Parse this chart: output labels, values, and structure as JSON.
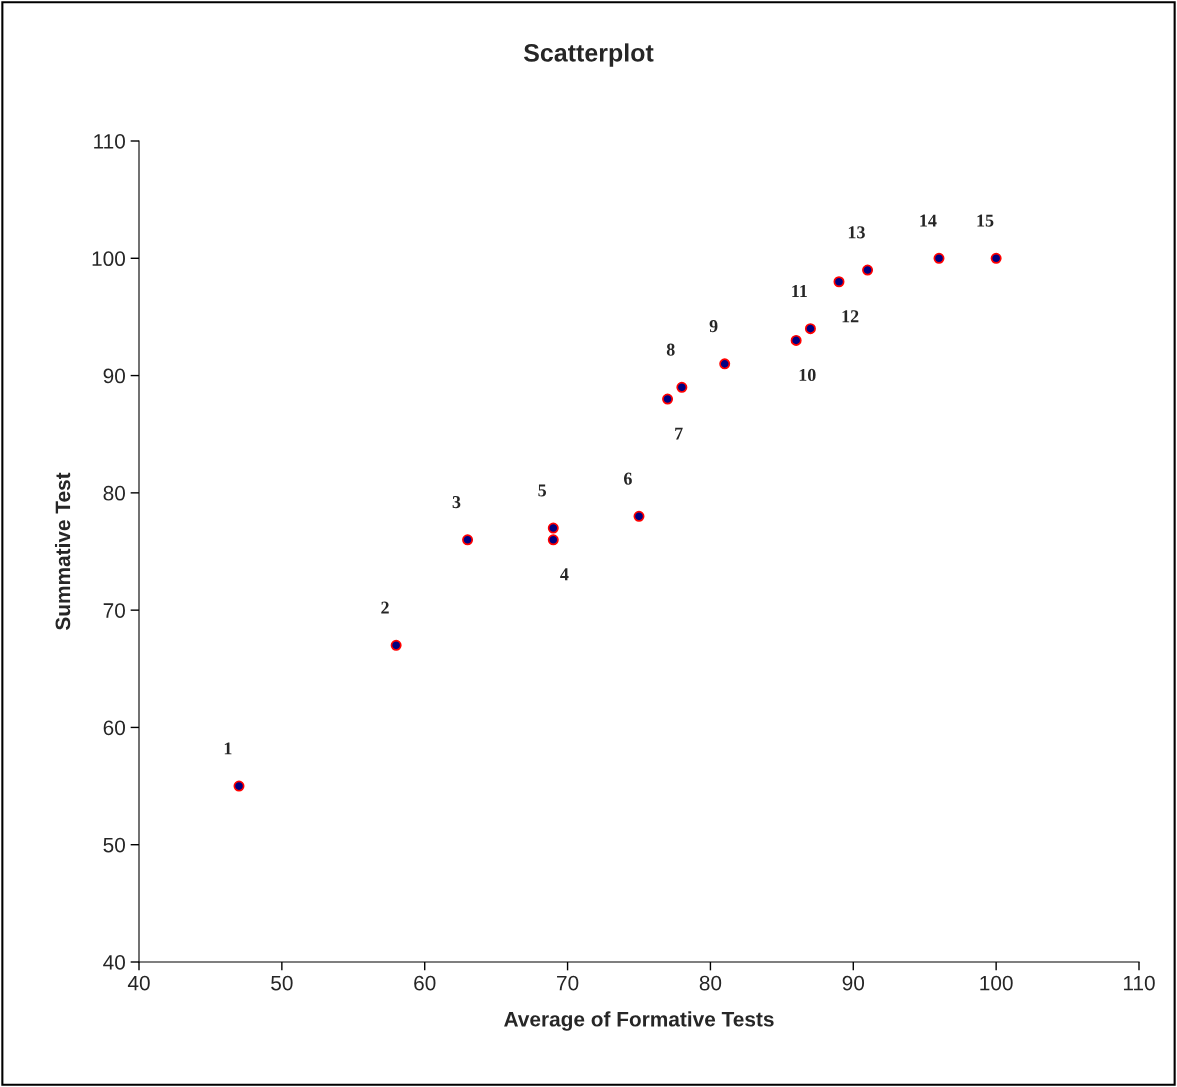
{
  "chart_data": {
    "type": "scatter",
    "title": "Scatterplot",
    "xlabel": "Average of Formative Tests",
    "ylabel": "Summative Test",
    "x": [
      47,
      58,
      63,
      69,
      69,
      75,
      77,
      78,
      81,
      86,
      87,
      89,
      91,
      96,
      100
    ],
    "series": [
      {
        "color": "#000080",
        "values": [
          55,
          67,
          76,
          76,
          77,
          78,
          88,
          89,
          91,
          93,
          94,
          98,
          99,
          100,
          100
        ]
      }
    ],
    "annotations": [
      {
        "text": "1",
        "x": 47,
        "y": 55
      },
      {
        "text": "2",
        "x": 58,
        "y": 67
      },
      {
        "text": "3",
        "x": 63,
        "y": 76
      },
      {
        "text": "4",
        "x": 69,
        "y": 76
      },
      {
        "text": "5",
        "x": 69,
        "y": 77
      },
      {
        "text": "6",
        "x": 75,
        "y": 78
      },
      {
        "text": "7",
        "x": 77,
        "y": 88
      },
      {
        "text": "8",
        "x": 78,
        "y": 89
      },
      {
        "text": "9",
        "x": 81,
        "y": 91
      },
      {
        "text": "10",
        "x": 86,
        "y": 93
      },
      {
        "text": "11",
        "x": 87,
        "y": 94
      },
      {
        "text": "12",
        "x": 89,
        "y": 98
      },
      {
        "text": "13",
        "x": 91,
        "y": 99
      },
      {
        "text": "14",
        "x": 96,
        "y": 100
      },
      {
        "text": "15",
        "x": 100,
        "y": 100
      }
    ],
    "xlim": [
      40,
      110
    ],
    "xticks": [
      40,
      50,
      60,
      70,
      80,
      90,
      100,
      110
    ],
    "ylim": [
      40,
      110
    ],
    "yticks": [
      40,
      50,
      60,
      70,
      80,
      90,
      100,
      110
    ],
    "marker": "circle",
    "grid": false,
    "legend": false
  }
}
